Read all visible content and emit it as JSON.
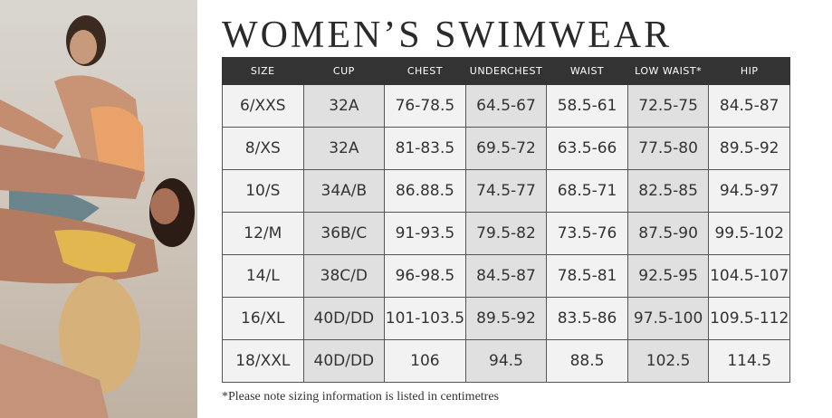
{
  "header": {
    "title": "WOMEN’S SWIMWEAR"
  },
  "table": {
    "columns": [
      "SIZE",
      "CUP",
      "CHEST",
      "UNDERCHEST",
      "WAIST",
      "LOW WAIST*",
      "HIP"
    ],
    "rows": [
      [
        "6/XXS",
        "32A",
        "76-78.5",
        "64.5-67",
        "58.5-61",
        "72.5-75",
        "84.5-87"
      ],
      [
        "8/XS",
        "32A",
        "81-83.5",
        "69.5-72",
        "63.5-66",
        "77.5-80",
        "89.5-92"
      ],
      [
        "10/S",
        "34A/B",
        "86.88.5",
        "74.5-77",
        "68.5-71",
        "82.5-85",
        "94.5-97"
      ],
      [
        "12/M",
        "36B/C",
        "91-93.5",
        "79.5-82",
        "73.5-76",
        "87.5-90",
        "99.5-102"
      ],
      [
        "14/L",
        "38C/D",
        "96-98.5",
        "84.5-87",
        "78.5-81",
        "92.5-95",
        "104.5-107"
      ],
      [
        "16/XL",
        "40D/DD",
        "101-103.5",
        "89.5-92",
        "83.5-86",
        "97.5-100",
        "109.5-112"
      ],
      [
        "18/XXL",
        "40D/DD",
        "106",
        "94.5",
        "88.5",
        "102.5",
        "114.5"
      ]
    ]
  },
  "footnote": "*Please note sizing information is listed in centimetres"
}
